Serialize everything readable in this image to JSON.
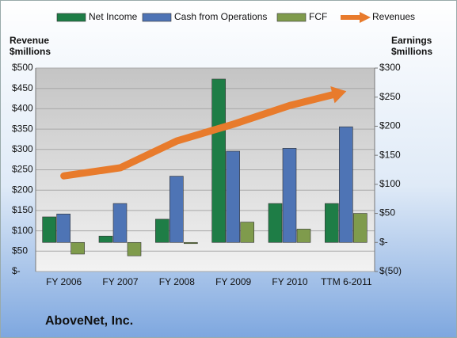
{
  "chart_data": {
    "type": "bar",
    "title": "AboveNet, Inc.",
    "categories": [
      "FY 2006",
      "FY 2007",
      "FY 2008",
      "FY 2009",
      "FY 2010",
      "TTM 6-2011"
    ],
    "y_label": [
      "Revenue",
      "$millions"
    ],
    "y2_label": [
      "Earnings",
      "$millions"
    ],
    "ylim": [
      0,
      500
    ],
    "yticks": [
      {
        "value": 0,
        "label": "$-"
      },
      {
        "value": 50,
        "label": "$50"
      },
      {
        "value": 100,
        "label": "$100"
      },
      {
        "value": 150,
        "label": "$150"
      },
      {
        "value": 200,
        "label": "$200"
      },
      {
        "value": 250,
        "label": "$250"
      },
      {
        "value": 300,
        "label": "$300"
      },
      {
        "value": 350,
        "label": "$350"
      },
      {
        "value": 400,
        "label": "$400"
      },
      {
        "value": 450,
        "label": "$450"
      },
      {
        "value": 500,
        "label": "$500"
      }
    ],
    "y2lim": [
      -50,
      300
    ],
    "y2ticks": [
      {
        "value": -50,
        "label": "$(50)"
      },
      {
        "value": 0,
        "label": "$-"
      },
      {
        "value": 50,
        "label": "$50"
      },
      {
        "value": 100,
        "label": "$100"
      },
      {
        "value": 150,
        "label": "$150"
      },
      {
        "value": 200,
        "label": "$200"
      },
      {
        "value": 250,
        "label": "$250"
      },
      {
        "value": 300,
        "label": "$300"
      }
    ],
    "grid": true,
    "legend": "top",
    "series": [
      {
        "name": "Net Income",
        "color": "#1e7d46",
        "axis": "y2",
        "type": "bar",
        "values": [
          44,
          11,
          40,
          281,
          67,
          67
        ]
      },
      {
        "name": "Cash from Operations",
        "color": "#4e74b5",
        "axis": "y2",
        "type": "bar",
        "values": [
          49,
          67,
          114,
          157,
          162,
          199
        ]
      },
      {
        "name": "FCF",
        "color": "#7f9b4c",
        "axis": "y2",
        "type": "bar",
        "values": [
          -20,
          -23,
          -2,
          35,
          23,
          50
        ]
      },
      {
        "name": "Revenues",
        "color": "#e87b2c",
        "axis": "y",
        "type": "arrow",
        "values": [
          235,
          255,
          321,
          362,
          408,
          443
        ]
      }
    ]
  }
}
